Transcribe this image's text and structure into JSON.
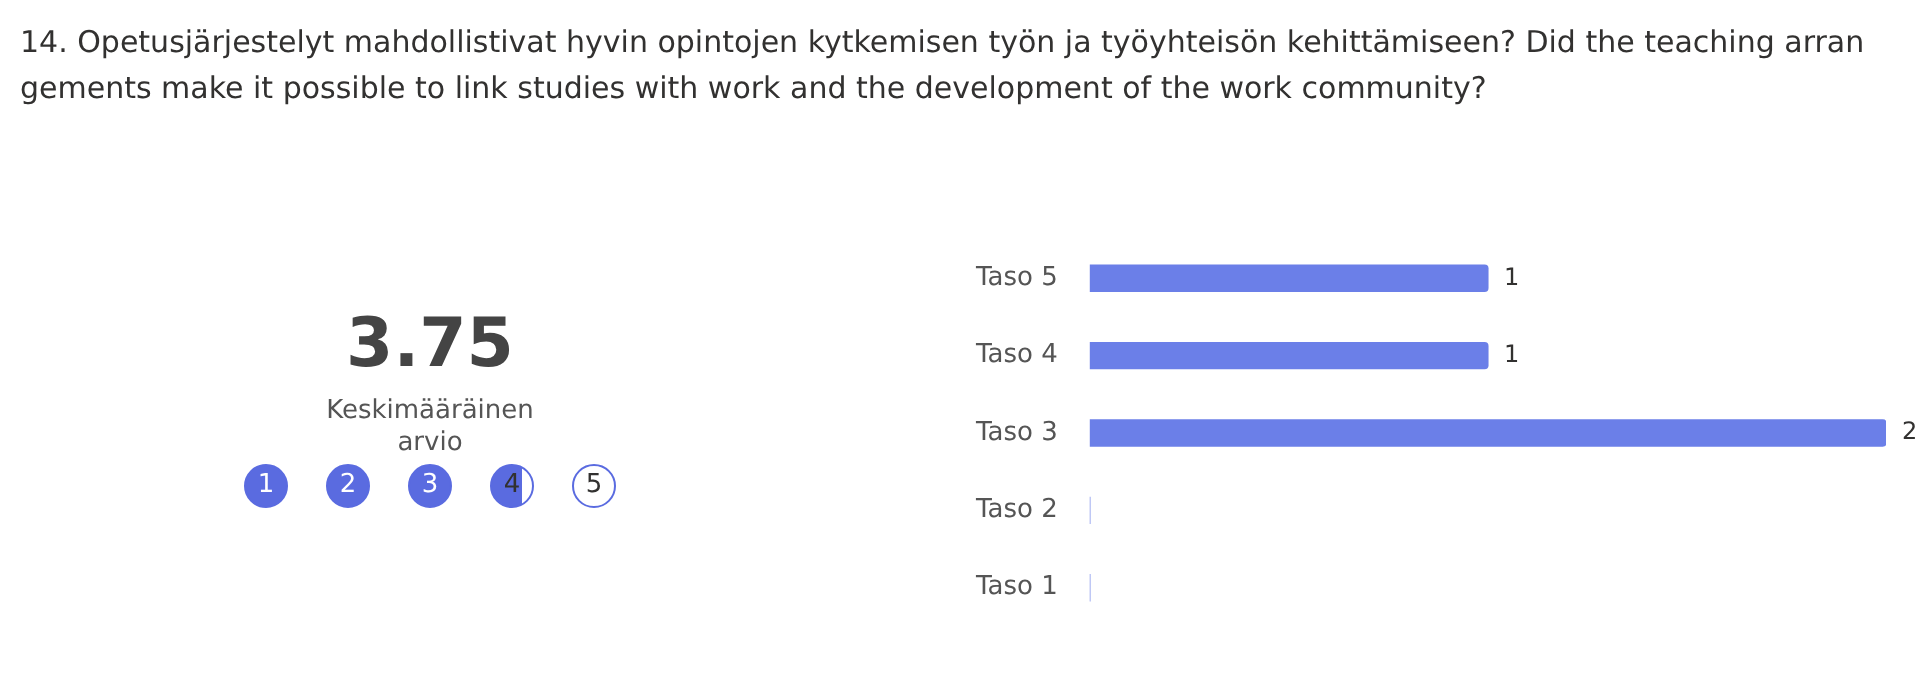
{
  "chart_data": {
    "type": "bar",
    "orientation": "horizontal",
    "title": "14. Opetusjärjestelyt mahdollistivat hyvin opintojen kytkemisen työn ja työyhteisön kehittämiseen? Did the teaching arrangements make it possible to link studies with work and the development of the work community?",
    "categories": [
      "Taso 5",
      "Taso 4",
      "Taso 3",
      "Taso 2",
      "Taso 1"
    ],
    "values": [
      1,
      1,
      2,
      0,
      0
    ],
    "value_labels": [
      "1",
      "1",
      "2",
      null,
      null
    ],
    "color": "#6b7fe8",
    "annotations": [
      "3.75",
      "Keskimääräinen arvio",
      "1",
      "2",
      "3",
      "4",
      "5"
    ]
  }
}
